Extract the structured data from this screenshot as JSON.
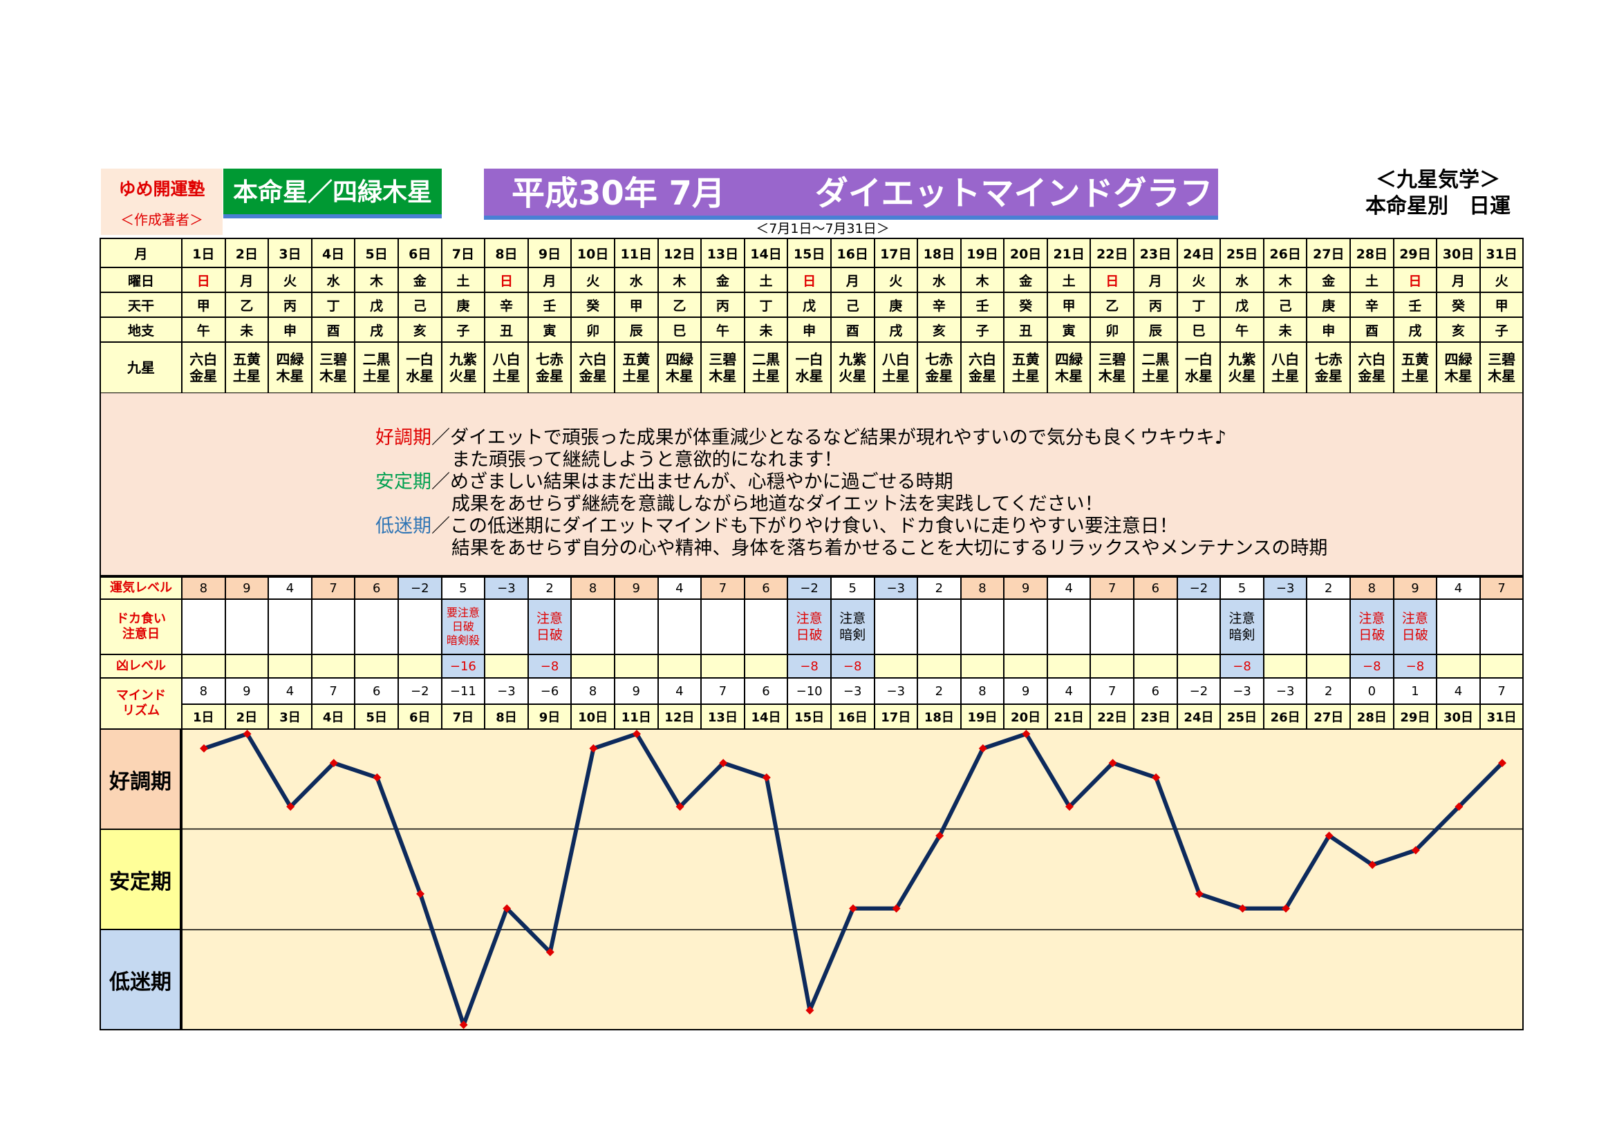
{
  "author": {
    "name": "ゆめ開運塾",
    "sub": "＜作成著者＞"
  },
  "honmei": "本命星／四緑木星",
  "title": {
    "year_month": "平成30年 7月",
    "name": "ダイエットマインドグラフ"
  },
  "subtitle": "＜7月1日～7月31日＞",
  "kyusei": {
    "line1": "＜九星気学＞",
    "line2": "本命星別　日運"
  },
  "labels": {
    "month": "月",
    "weekday": "曜日",
    "tenkan": "天干",
    "chishi": "地支",
    "kyusei": "九星",
    "unki": "運気レベル",
    "doka_1": "ドカ食い",
    "doka_2": "注意日",
    "kyo": "凶レベル",
    "mind_1": "マインド",
    "mind_2": "リズム"
  },
  "days": [
    "1日",
    "2日",
    "3日",
    "4日",
    "5日",
    "6日",
    "7日",
    "8日",
    "9日",
    "10日",
    "11日",
    "12日",
    "13日",
    "14日",
    "15日",
    "16日",
    "17日",
    "18日",
    "19日",
    "20日",
    "21日",
    "22日",
    "23日",
    "24日",
    "25日",
    "26日",
    "27日",
    "28日",
    "29日",
    "30日",
    "31日"
  ],
  "weekdays": [
    "日",
    "月",
    "火",
    "水",
    "木",
    "金",
    "土",
    "日",
    "月",
    "火",
    "水",
    "木",
    "金",
    "土",
    "日",
    "月",
    "火",
    "水",
    "木",
    "金",
    "土",
    "日",
    "月",
    "火",
    "水",
    "木",
    "金",
    "土",
    "日",
    "月",
    "火"
  ],
  "tenkan": [
    "甲",
    "乙",
    "丙",
    "丁",
    "戊",
    "己",
    "庚",
    "辛",
    "壬",
    "癸",
    "甲",
    "乙",
    "丙",
    "丁",
    "戊",
    "己",
    "庚",
    "辛",
    "壬",
    "癸",
    "甲",
    "乙",
    "丙",
    "丁",
    "戊",
    "己",
    "庚",
    "辛",
    "壬",
    "癸",
    "甲"
  ],
  "chishi": [
    "午",
    "未",
    "申",
    "酉",
    "戌",
    "亥",
    "子",
    "丑",
    "寅",
    "卯",
    "辰",
    "巳",
    "午",
    "未",
    "申",
    "酉",
    "戌",
    "亥",
    "子",
    "丑",
    "寅",
    "卯",
    "辰",
    "巳",
    "午",
    "未",
    "申",
    "酉",
    "戌",
    "亥",
    "子"
  ],
  "kyusei_top": [
    "六白",
    "五黄",
    "四緑",
    "三碧",
    "二黒",
    "一白",
    "九紫",
    "八白",
    "七赤",
    "六白",
    "五黄",
    "四緑",
    "三碧",
    "二黒",
    "一白",
    "九紫",
    "八白",
    "七赤",
    "六白",
    "五黄",
    "四緑",
    "三碧",
    "二黒",
    "一白",
    "九紫",
    "八白",
    "七赤",
    "六白",
    "五黄",
    "四緑",
    "三碧"
  ],
  "kyusei_bottom": [
    "金星",
    "土星",
    "木星",
    "木星",
    "土星",
    "水星",
    "火星",
    "土星",
    "金星",
    "金星",
    "土星",
    "木星",
    "木星",
    "土星",
    "水星",
    "火星",
    "土星",
    "金星",
    "金星",
    "土星",
    "木星",
    "木星",
    "土星",
    "水星",
    "火星",
    "土星",
    "金星",
    "金星",
    "土星",
    "木星",
    "木星"
  ],
  "description": {
    "good_head": "好調期",
    "good_1": "／ダイエットで頑張った成果が体重減少となるなど結果が現れやすいので気分も良くウキウキ♪",
    "good_2": "また頑張って継続しようと意欲的になれます！",
    "stable_head": "安定期",
    "stable_1": "／めざましい結果はまだ出ませんが、心穏やかに過ごせる時期",
    "stable_2": "成果をあせらず継続を意識しながら地道なダイエット法を実践してください！",
    "low_head": "低迷期",
    "low_1": "／この低迷期にダイエットマインドも下がりやけ食い、ドカ食いに走りやすい要注意日！",
    "low_2": "結果をあせらず自分の心や精神、身体を落ち着かせることを大切にするリラックスやメンテナンスの時期"
  },
  "unki": [
    "8",
    "9",
    "4",
    "7",
    "6",
    "−2",
    "5",
    "−3",
    "2",
    "8",
    "9",
    "4",
    "7",
    "6",
    "−2",
    "5",
    "−3",
    "2",
    "8",
    "9",
    "4",
    "7",
    "6",
    "−2",
    "5",
    "−3",
    "2",
    "8",
    "9",
    "4",
    "7"
  ],
  "doka": [
    "",
    "",
    "",
    "",
    "",
    "",
    "要注意\n日破\n暗剣殺",
    "",
    "注意\n日破",
    "",
    "",
    "",
    "",
    "",
    "注意\n日破",
    "注意\n暗剣",
    "",
    "",
    "",
    "",
    "",
    "",
    "",
    "",
    "注意\n暗剣",
    "",
    "",
    "注意\n日破",
    "注意\n日破",
    "",
    ""
  ],
  "kyo": [
    "",
    "",
    "",
    "",
    "",
    "",
    "−16",
    "",
    "−8",
    "",
    "",
    "",
    "",
    "",
    "−8",
    "−8",
    "",
    "",
    "",
    "",
    "",
    "",
    "",
    "",
    "−8",
    "",
    "",
    "−8",
    "−8",
    "",
    ""
  ],
  "mind": [
    "8",
    "9",
    "4",
    "7",
    "6",
    "−2",
    "−11",
    "−3",
    "−6",
    "8",
    "9",
    "4",
    "7",
    "6",
    "−10",
    "−3",
    "−3",
    "2",
    "8",
    "9",
    "4",
    "7",
    "6",
    "−2",
    "−3",
    "−3",
    "2",
    "0",
    "1",
    "4",
    "7"
  ],
  "zones": {
    "good": "好調期",
    "stable": "安定期",
    "low": "低迷期"
  },
  "colors": {
    "line": "#0d2a5c",
    "marker": "#e00000",
    "zone_good": "#fbd5b5",
    "zone_stable": "#ffff99",
    "zone_low": "#c5d9f1",
    "plot_bg": "#fff2cc"
  },
  "chart_data": {
    "type": "line",
    "x": [
      1,
      2,
      3,
      4,
      5,
      6,
      7,
      8,
      9,
      10,
      11,
      12,
      13,
      14,
      15,
      16,
      17,
      18,
      19,
      20,
      21,
      22,
      23,
      24,
      25,
      26,
      27,
      28,
      29,
      30,
      31
    ],
    "categories": [
      "1日",
      "2日",
      "3日",
      "4日",
      "5日",
      "6日",
      "7日",
      "8日",
      "9日",
      "10日",
      "11日",
      "12日",
      "13日",
      "14日",
      "15日",
      "16日",
      "17日",
      "18日",
      "19日",
      "20日",
      "21日",
      "22日",
      "23日",
      "24日",
      "25日",
      "26日",
      "27日",
      "28日",
      "29日",
      "30日",
      "31日"
    ],
    "values": [
      8,
      9,
      4,
      7,
      6,
      -2,
      -11,
      -3,
      -6,
      8,
      9,
      4,
      7,
      6,
      -10,
      -3,
      -3,
      2,
      8,
      9,
      4,
      7,
      6,
      -2,
      -3,
      -3,
      2,
      0,
      1,
      4,
      7
    ],
    "ylim": [
      -11,
      9
    ],
    "bands": [
      "好調期",
      "安定期",
      "低迷期"
    ],
    "grid": true
  }
}
